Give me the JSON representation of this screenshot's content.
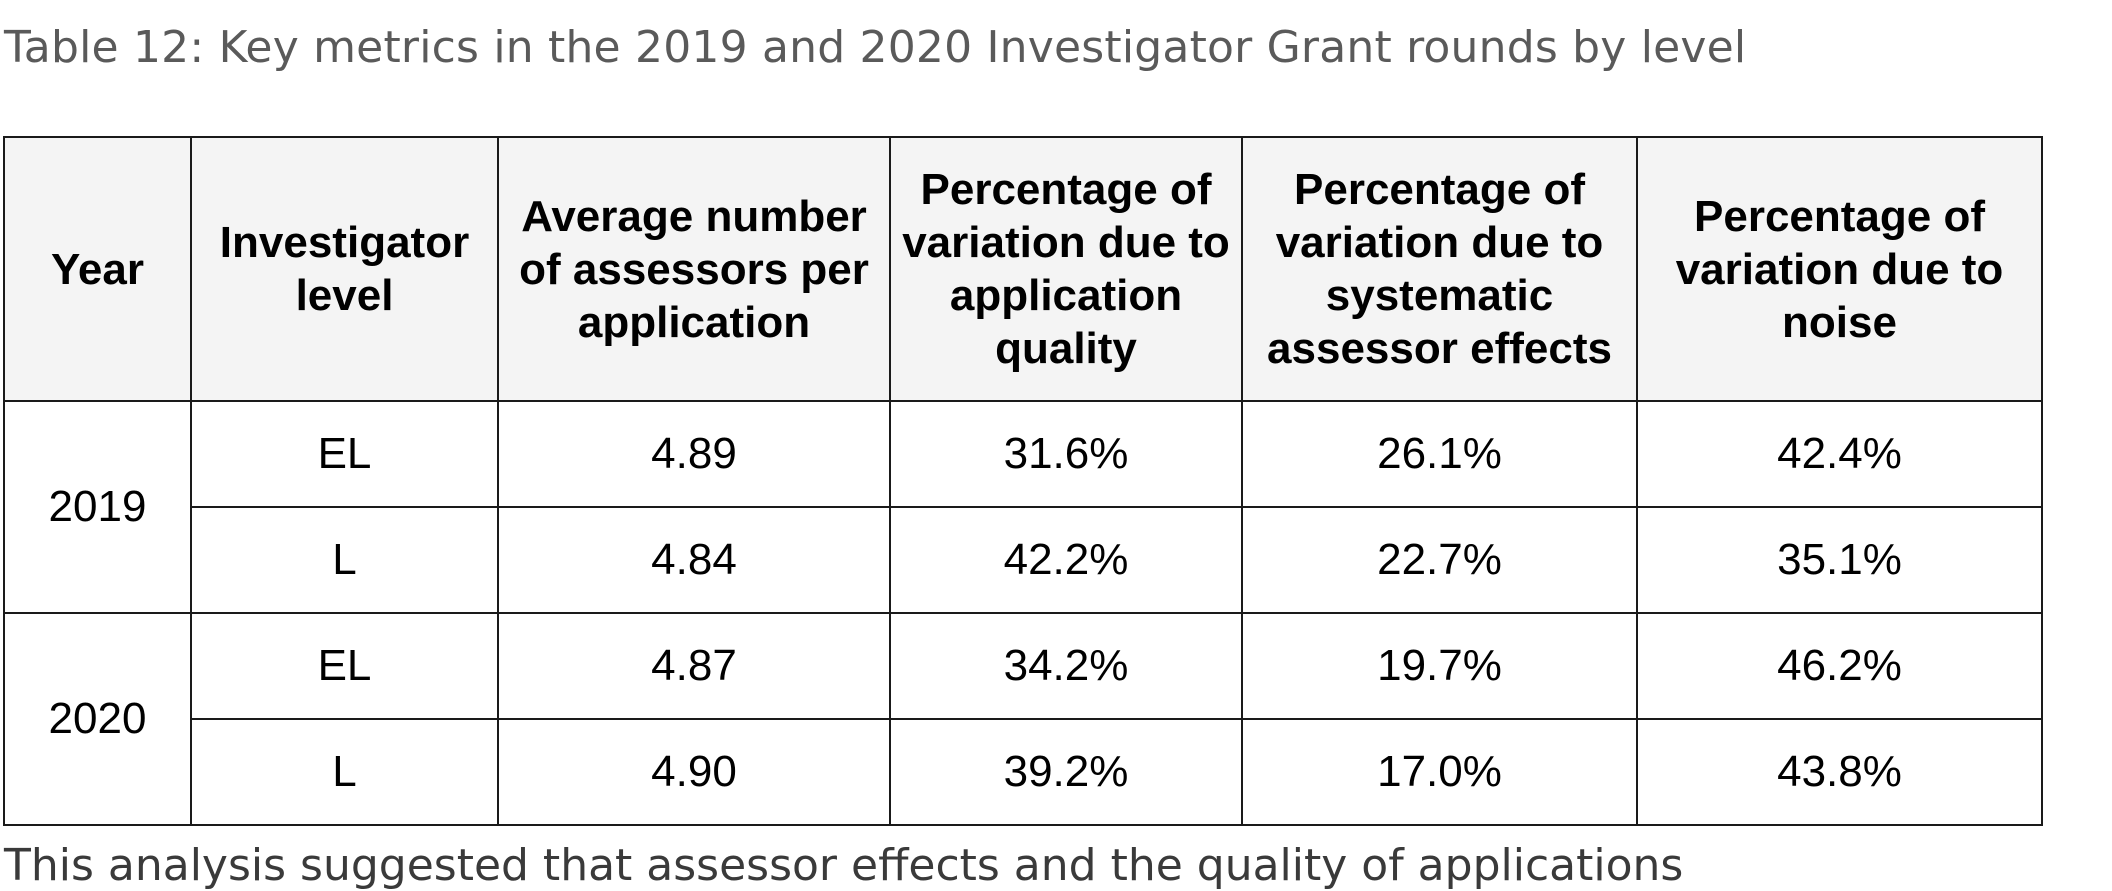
{
  "caption": "Table 12: Key metrics in the 2019 and 2020 Investigator Grant rounds by level",
  "table": {
    "headers": [
      "Year",
      "Investigator level",
      "Average number of assessors per application",
      "Percentage of variation due to application quality",
      "Percentage of variation due to systematic assessor effects",
      "Percentage of variation due to noise"
    ],
    "groups": [
      {
        "year": "2019",
        "rows": [
          {
            "level": "EL",
            "avg_assessors": "4.89",
            "pct_quality": "31.6%",
            "pct_systematic": "26.1%",
            "pct_noise": "42.4%"
          },
          {
            "level": "L",
            "avg_assessors": "4.84",
            "pct_quality": "42.2%",
            "pct_systematic": "22.7%",
            "pct_noise": "35.1%"
          }
        ]
      },
      {
        "year": "2020",
        "rows": [
          {
            "level": "EL",
            "avg_assessors": "4.87",
            "pct_quality": "34.2%",
            "pct_systematic": "19.7%",
            "pct_noise": "46.2%"
          },
          {
            "level": "L",
            "avg_assessors": "4.90",
            "pct_quality": "39.2%",
            "pct_systematic": "17.0%",
            "pct_noise": "43.8%"
          }
        ]
      }
    ]
  },
  "footer_partial_text": "This analysis suggested that assessor effects and the quality of applications"
}
